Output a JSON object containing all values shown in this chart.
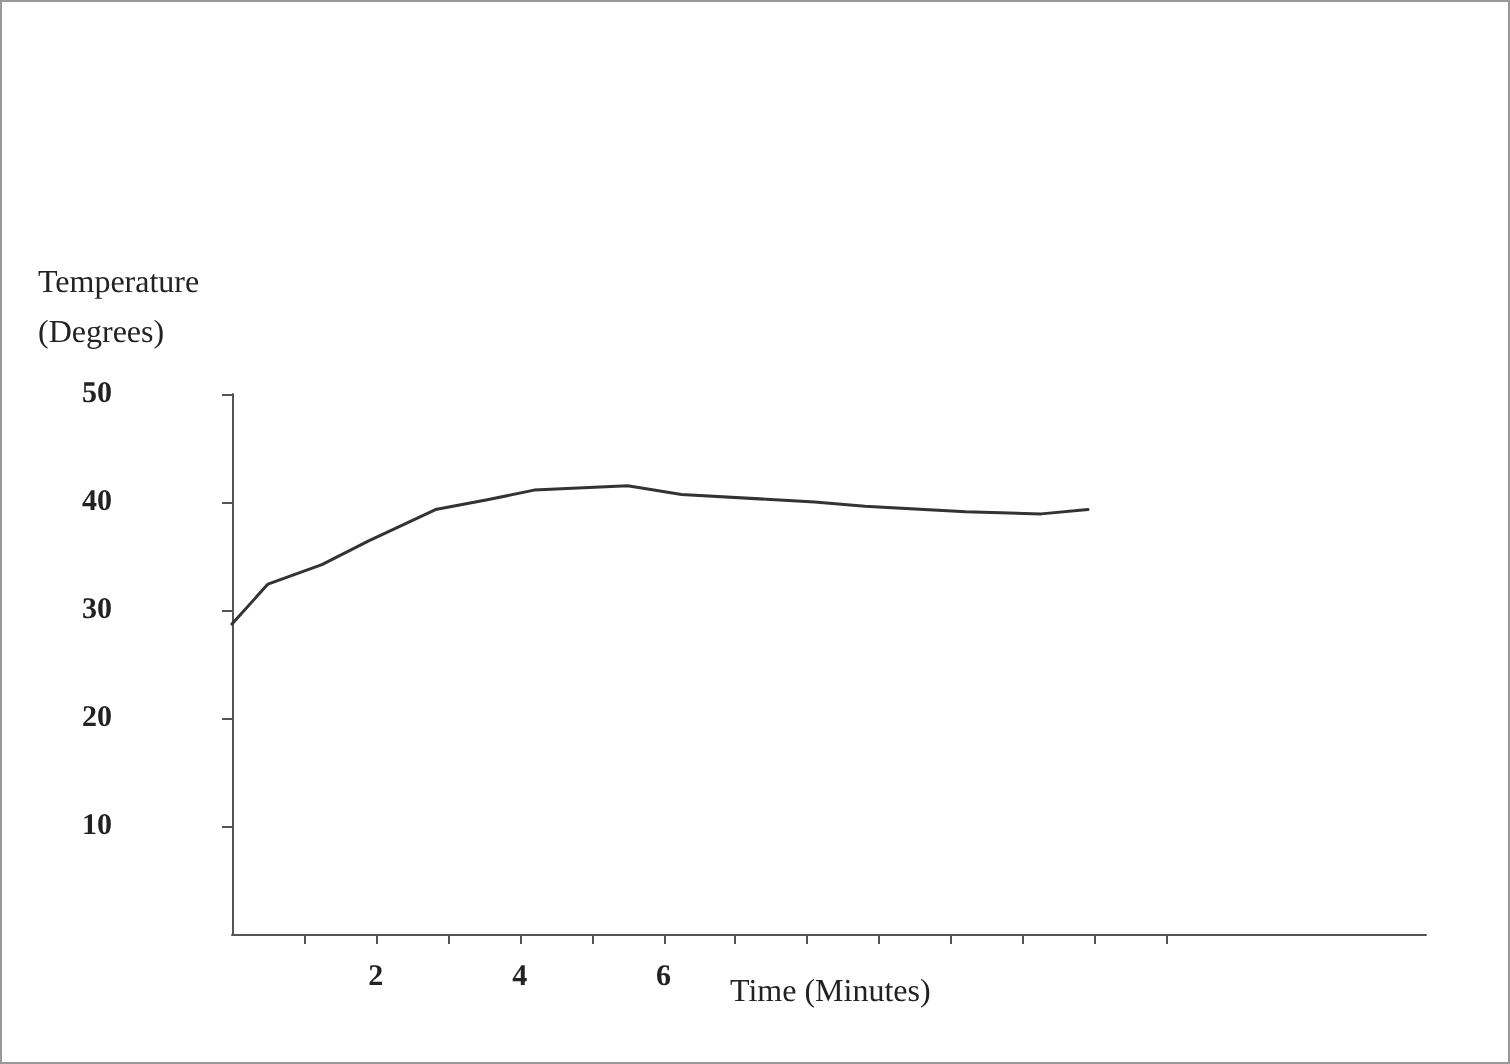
{
  "chart_data": {
    "type": "line",
    "ylabel": "Temperature\n(Degrees)",
    "xlabel": "Time (Minutes)",
    "x": [
      0,
      0.5,
      1.25,
      1.9,
      2.83,
      3.55,
      4.2,
      5.5,
      6.25,
      8.1,
      8.8,
      10.2,
      11.25,
      11.9
    ],
    "series": [
      {
        "color": "#333333",
        "values": [
          28.7,
          32.4,
          34.2,
          36.4,
          39.3,
          40.2,
          41.1,
          41.5,
          40.7,
          40,
          39.6,
          39.1,
          38.9,
          39.3
        ]
      }
    ],
    "xlim": [
      0,
      16.6
    ],
    "xticks": [
      {
        "value": 1,
        "label": null
      },
      2,
      {
        "value": 3,
        "label": null
      },
      4,
      {
        "value": 5,
        "label": null
      },
      6,
      {
        "value": 7,
        "label": null
      },
      {
        "value": 8,
        "label": null
      },
      {
        "value": 9,
        "label": null
      },
      {
        "value": 10,
        "label": null
      },
      {
        "value": 11,
        "label": null
      },
      {
        "value": 12,
        "label": null
      },
      {
        "value": 13,
        "label": null
      }
    ],
    "ylim": [
      0,
      50
    ],
    "yticks": [
      10,
      20,
      30,
      40,
      50
    ],
    "grid": false,
    "marker": "none",
    "line_style": "solid"
  }
}
